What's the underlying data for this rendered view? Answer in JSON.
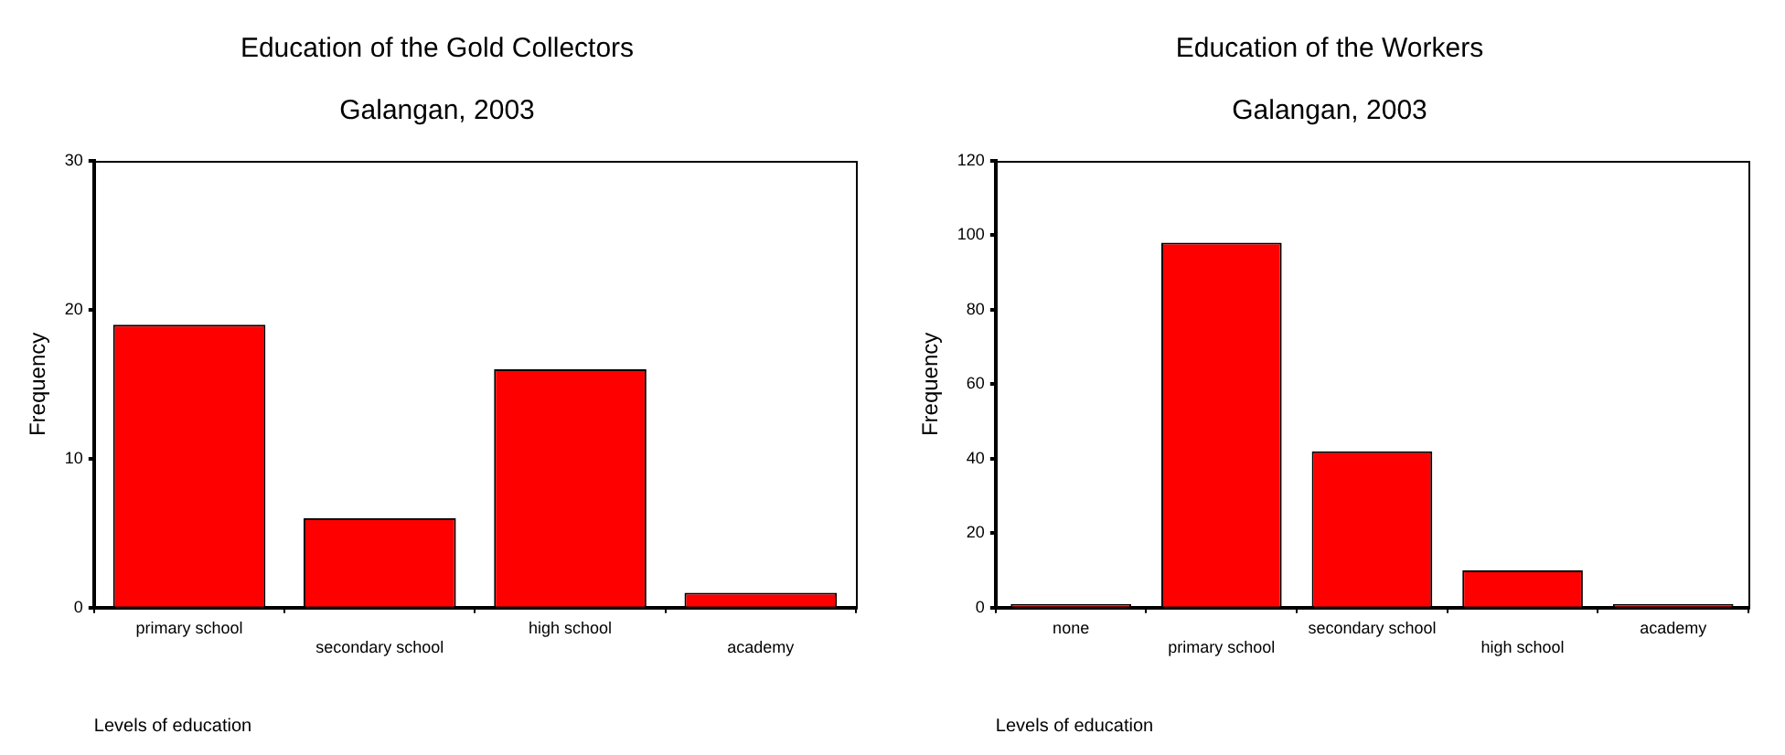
{
  "chart_data": [
    {
      "type": "bar",
      "title": "Education of the Gold Collectors",
      "subtitle": "Galangan, 2003",
      "xlabel": "Levels of education",
      "ylabel": "Frequency",
      "categories": [
        "primary school",
        "secondary school",
        "high school",
        "academy"
      ],
      "values": [
        19,
        6,
        16,
        1
      ],
      "color": "#ff0000",
      "ylim": [
        0,
        30
      ],
      "yticks": [
        0,
        10,
        20,
        30
      ],
      "grid": false,
      "legend": false
    },
    {
      "type": "bar",
      "title": "Education of the Workers",
      "subtitle": "Galangan, 2003",
      "xlabel": "Levels of education",
      "ylabel": "Frequency",
      "categories": [
        "none",
        "primary school",
        "secondary school",
        "high school",
        "academy"
      ],
      "values": [
        1,
        98,
        42,
        10,
        1
      ],
      "color": "#ff0000",
      "ylim": [
        0,
        120
      ],
      "yticks": [
        0,
        20,
        40,
        60,
        80,
        100,
        120
      ],
      "grid": false,
      "legend": false
    }
  ]
}
